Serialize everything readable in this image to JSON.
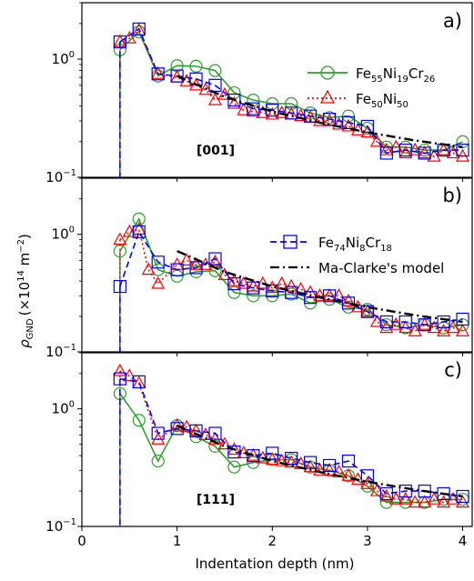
{
  "figure": {
    "xlabel": "Indentation depth (nm)",
    "ylabel_main": "ρ",
    "ylabel_sub": "GND",
    "ylabel_unit": "(×10",
    "ylabel_exp": "14",
    "ylabel_unit2": " m",
    "ylabel_exp2": "−2",
    "ylabel_close": ")",
    "xticks": [
      "0",
      "1",
      "2",
      "3",
      "4"
    ],
    "ytick_upper": "10",
    "ytick_upper_exp": "0",
    "ytick_lower": "10",
    "ytick_lower_exp": "−1"
  },
  "legends": {
    "a": [
      {
        "base": "Fe",
        "s1": "55",
        "b2": "Ni",
        "s2": "19",
        "b3": "Cr",
        "s3": "26"
      },
      {
        "base": "Fe",
        "s1": "50",
        "b2": "Ni",
        "s2": "50",
        "b3": "",
        "s3": ""
      }
    ],
    "b": [
      {
        "base": "Fe",
        "s1": "74",
        "b2": "Ni",
        "s2": "8",
        "b3": "Cr",
        "s3": "18"
      },
      {
        "text": "Ma-Clarke's model"
      }
    ]
  },
  "colors": {
    "fe55": "#2ca02c",
    "fe50": "#ff0000",
    "fe74": "#0000ff",
    "model": "#000000"
  },
  "chart_data": [
    {
      "type": "line",
      "panel": "a)",
      "annotation": "[001]",
      "xlim": [
        0,
        4.1
      ],
      "ylim": [
        0.1,
        3.0
      ],
      "yscale": "log",
      "xlabel": "",
      "ylabel": "ρGND (×10^14 m^-2)",
      "legend_position": "right",
      "series": [
        {
          "name": "Fe55Ni19Cr26",
          "style": "solid-circle",
          "x": [
            0.4,
            0.6,
            0.8,
            1.0,
            1.2,
            1.4,
            1.6,
            1.8,
            2.0,
            2.2,
            2.4,
            2.6,
            2.8,
            3.0,
            3.2,
            3.4,
            3.6,
            3.8,
            4.0
          ],
          "y": [
            1.2,
            1.7,
            0.72,
            0.88,
            0.87,
            0.8,
            0.52,
            0.45,
            0.42,
            0.42,
            0.35,
            0.32,
            0.33,
            0.26,
            0.18,
            0.18,
            0.17,
            0.17,
            0.2
          ]
        },
        {
          "name": "Fe50Ni50",
          "style": "dotted-triangle",
          "x": [
            0.4,
            0.5,
            0.6,
            0.8,
            1.0,
            1.1,
            1.2,
            1.3,
            1.4,
            1.5,
            1.6,
            1.7,
            1.8,
            1.9,
            2.0,
            2.1,
            2.2,
            2.3,
            2.4,
            2.5,
            2.6,
            2.7,
            2.8,
            2.9,
            3.0,
            3.1,
            3.2,
            3.3,
            3.4,
            3.5,
            3.6,
            3.7,
            3.8,
            3.9,
            4.0
          ],
          "y": [
            1.4,
            1.5,
            1.75,
            0.75,
            0.7,
            0.65,
            0.6,
            0.55,
            0.45,
            0.5,
            0.42,
            0.37,
            0.36,
            0.35,
            0.34,
            0.35,
            0.34,
            0.33,
            0.32,
            0.3,
            0.3,
            0.28,
            0.27,
            0.25,
            0.24,
            0.2,
            0.17,
            0.18,
            0.16,
            0.17,
            0.16,
            0.15,
            0.17,
            0.16,
            0.15
          ]
        },
        {
          "name": "Fe74Ni8Cr18",
          "style": "dashed-square",
          "x": [
            0.4,
            0.6,
            0.8,
            1.0,
            1.2,
            1.4,
            1.6,
            1.8,
            2.0,
            2.2,
            2.4,
            2.6,
            2.8,
            3.0,
            3.2,
            3.4,
            3.6,
            3.8,
            4.0
          ],
          "y": [
            1.4,
            1.8,
            0.75,
            0.72,
            0.68,
            0.6,
            0.45,
            0.38,
            0.37,
            0.35,
            0.33,
            0.31,
            0.29,
            0.27,
            0.16,
            0.17,
            0.16,
            0.17,
            0.17
          ]
        },
        {
          "name": "Ma-Clarke's model",
          "style": "dashdot",
          "x": [
            1.0,
            1.5,
            2.0,
            2.5,
            3.0,
            3.5,
            4.0
          ],
          "y": [
            0.72,
            0.48,
            0.36,
            0.29,
            0.24,
            0.205,
            0.18
          ]
        }
      ]
    },
    {
      "type": "line",
      "panel": "b)",
      "annotation": "",
      "xlim": [
        0,
        4.1
      ],
      "ylim": [
        0.1,
        3.0
      ],
      "yscale": "log",
      "series": [
        {
          "name": "Fe55Ni19Cr26",
          "style": "solid-circle",
          "x": [
            0.4,
            0.6,
            0.8,
            1.0,
            1.2,
            1.4,
            1.6,
            1.8,
            2.0,
            2.2,
            2.4,
            2.6,
            2.8,
            3.0,
            3.2,
            3.4,
            3.6,
            3.8,
            4.0
          ],
          "y": [
            0.72,
            1.35,
            0.5,
            0.44,
            0.48,
            0.49,
            0.32,
            0.3,
            0.3,
            0.31,
            0.26,
            0.28,
            0.24,
            0.23,
            0.17,
            0.16,
            0.17,
            0.16,
            0.17
          ]
        },
        {
          "name": "Fe50Ni50",
          "style": "dotted-triangle",
          "x": [
            0.4,
            0.5,
            0.6,
            0.7,
            0.8,
            1.0,
            1.1,
            1.2,
            1.3,
            1.4,
            1.5,
            1.6,
            1.7,
            1.8,
            1.9,
            2.0,
            2.1,
            2.2,
            2.3,
            2.4,
            2.5,
            2.6,
            2.7,
            2.8,
            2.9,
            3.0,
            3.1,
            3.2,
            3.3,
            3.4,
            3.5,
            3.6,
            3.7,
            3.8,
            3.9,
            4.0
          ],
          "y": [
            0.9,
            1.05,
            1.1,
            0.5,
            0.38,
            0.55,
            0.6,
            0.55,
            0.55,
            0.58,
            0.45,
            0.4,
            0.38,
            0.36,
            0.38,
            0.35,
            0.38,
            0.36,
            0.34,
            0.32,
            0.3,
            0.3,
            0.3,
            0.27,
            0.24,
            0.22,
            0.18,
            0.16,
            0.17,
            0.16,
            0.15,
            0.17,
            0.16,
            0.15,
            0.16,
            0.15
          ]
        },
        {
          "name": "Fe74Ni8Cr18",
          "style": "dashed-square",
          "x": [
            0.4,
            0.6,
            0.8,
            1.0,
            1.2,
            1.4,
            1.6,
            1.8,
            2.0,
            2.2,
            2.4,
            2.6,
            2.8,
            3.0,
            3.2,
            3.4,
            3.6,
            3.8,
            4.0
          ],
          "y": [
            0.36,
            1.05,
            0.58,
            0.5,
            0.52,
            0.62,
            0.38,
            0.35,
            0.33,
            0.32,
            0.29,
            0.3,
            0.26,
            0.22,
            0.18,
            0.18,
            0.17,
            0.18,
            0.19
          ]
        },
        {
          "name": "Ma-Clarke's model",
          "style": "dashdot",
          "x": [
            1.0,
            1.5,
            2.0,
            2.5,
            3.0,
            3.5,
            4.0
          ],
          "y": [
            0.72,
            0.48,
            0.36,
            0.29,
            0.24,
            0.205,
            0.18
          ]
        }
      ]
    },
    {
      "type": "line",
      "panel": "c)",
      "annotation": "[111]",
      "xlim": [
        0,
        4.1
      ],
      "ylim": [
        0.1,
        3.0
      ],
      "yscale": "log",
      "xlabel": "Indentation depth (nm)",
      "series": [
        {
          "name": "Fe55Ni19Cr26",
          "style": "solid-circle",
          "x": [
            0.4,
            0.6,
            0.8,
            1.0,
            1.2,
            1.4,
            1.6,
            1.8,
            2.0,
            2.2,
            2.4,
            2.6,
            2.8,
            3.0,
            3.2,
            3.4,
            3.6,
            3.8,
            4.0
          ],
          "y": [
            1.35,
            0.8,
            0.36,
            0.72,
            0.58,
            0.48,
            0.32,
            0.35,
            0.37,
            0.37,
            0.32,
            0.3,
            0.27,
            0.22,
            0.16,
            0.16,
            0.16,
            0.17,
            0.17
          ]
        },
        {
          "name": "Fe50Ni50",
          "style": "dotted-triangle",
          "x": [
            0.4,
            0.5,
            0.6,
            0.8,
            1.0,
            1.1,
            1.2,
            1.3,
            1.4,
            1.5,
            1.6,
            1.7,
            1.8,
            1.9,
            2.0,
            2.1,
            2.2,
            2.3,
            2.4,
            2.5,
            2.6,
            2.7,
            2.8,
            2.9,
            3.0,
            3.1,
            3.2,
            3.3,
            3.4,
            3.5,
            3.6,
            3.7,
            3.8,
            3.9,
            4.0
          ],
          "y": [
            2.1,
            1.9,
            1.65,
            0.55,
            0.72,
            0.7,
            0.65,
            0.6,
            0.55,
            0.5,
            0.45,
            0.42,
            0.4,
            0.38,
            0.37,
            0.36,
            0.35,
            0.34,
            0.32,
            0.3,
            0.3,
            0.29,
            0.27,
            0.25,
            0.23,
            0.2,
            0.18,
            0.17,
            0.17,
            0.16,
            0.16,
            0.17,
            0.16,
            0.17,
            0.16
          ]
        },
        {
          "name": "Fe74Ni8Cr18",
          "style": "dashed-square",
          "x": [
            0.4,
            0.6,
            0.8,
            1.0,
            1.2,
            1.4,
            1.6,
            1.8,
            2.0,
            2.2,
            2.4,
            2.6,
            2.8,
            3.0,
            3.2,
            3.4,
            3.6,
            3.8,
            4.0
          ],
          "y": [
            1.8,
            1.7,
            0.62,
            0.68,
            0.65,
            0.62,
            0.43,
            0.4,
            0.42,
            0.38,
            0.35,
            0.33,
            0.36,
            0.27,
            0.19,
            0.2,
            0.2,
            0.19,
            0.18
          ]
        },
        {
          "name": "Ma-Clarke's model",
          "style": "dashdot",
          "x": [
            1.0,
            1.5,
            2.0,
            2.5,
            3.0,
            3.5,
            4.0
          ],
          "y": [
            0.72,
            0.48,
            0.36,
            0.29,
            0.24,
            0.205,
            0.18
          ]
        }
      ]
    }
  ]
}
